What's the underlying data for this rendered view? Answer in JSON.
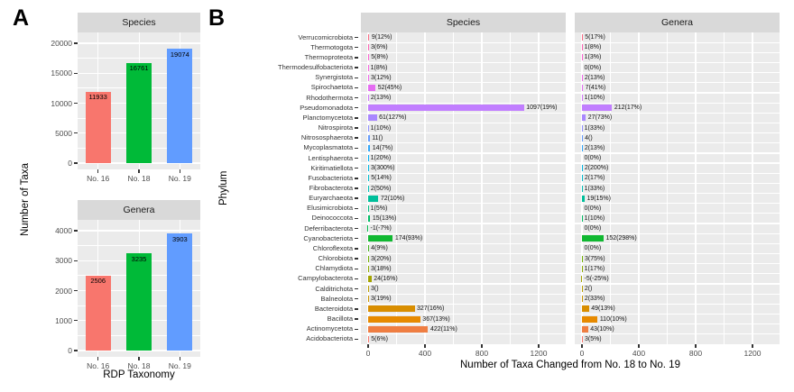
{
  "figure": {
    "panel_a_label": "A",
    "panel_b_label": "B",
    "colors": {
      "panel_bg": "#EBEBEB",
      "strip_bg": "#D9D9D9",
      "grid": "#FFFFFF",
      "tick_label": "#4D4D4D",
      "bar_value_label": "#000000"
    }
  },
  "chart_data": [
    {
      "id": "panelA_species",
      "type": "bar",
      "title": "Species",
      "categories": [
        "No. 16",
        "No. 18",
        "No. 19"
      ],
      "values": [
        11933,
        16761,
        19074
      ],
      "value_labels": [
        "11933",
        "16761",
        "19074"
      ],
      "bar_colors": [
        "#F8766D",
        "#00BA38",
        "#619CFF"
      ],
      "ylabel": "Number of Taxa",
      "xlabel": "RDP Taxonomy",
      "ylim": [
        0,
        20000
      ],
      "yticks": [
        0,
        5000,
        10000,
        15000,
        20000
      ],
      "grid": "on"
    },
    {
      "id": "panelA_genera",
      "type": "bar",
      "title": "Genera",
      "categories": [
        "No. 16",
        "No. 18",
        "No. 19"
      ],
      "values": [
        2506,
        3235,
        3903
      ],
      "value_labels": [
        "2506",
        "3235",
        "3903"
      ],
      "bar_colors": [
        "#F8766D",
        "#00BA38",
        "#619CFF"
      ],
      "ylim": [
        0,
        4000
      ],
      "yticks": [
        0,
        1000,
        2000,
        3000,
        4000
      ],
      "grid": "on"
    },
    {
      "id": "panelB_taxa_changed",
      "type": "bar-horizontal",
      "facets": [
        "Species",
        "Genera"
      ],
      "xlabel": "Number of Taxa Changed from No. 18 to No. 19",
      "ylabel": "Phylum",
      "xlim": [
        0,
        1390
      ],
      "xticks": [
        0,
        400,
        800,
        1200
      ],
      "grid": "on",
      "legend": "none",
      "rows": [
        {
          "phylum": "Verrucomicrobiota",
          "color": "#FB6A85",
          "species": 9,
          "species_label": "9(12%)",
          "genera": 5,
          "genera_label": "5(17%)"
        },
        {
          "phylum": "Thermotogota",
          "color": "#FD63B4",
          "species": 3,
          "species_label": "3(6%)",
          "genera": 1,
          "genera_label": "1(8%)"
        },
        {
          "phylum": "Thermoproteota",
          "color": "#FC62D1",
          "species": 5,
          "species_label": "5(8%)",
          "genera": 1,
          "genera_label": "1(3%)"
        },
        {
          "phylum": "Thermodesulfobacteriota",
          "color": "#F764DF",
          "species": 1,
          "species_label": "1(8%)",
          "genera": 0,
          "genera_label": "0(0%)"
        },
        {
          "phylum": "Synergistota",
          "color": "#F166E9",
          "species": 3,
          "species_label": "3(12%)",
          "genera": 2,
          "genera_label": "2(13%)"
        },
        {
          "phylum": "Spirochaetota",
          "color": "#E56DF2",
          "species": 52,
          "species_label": "52(45%)",
          "genera": 7,
          "genera_label": "7(41%)"
        },
        {
          "phylum": "Rhodothermota",
          "color": "#D376F9",
          "species": 2,
          "species_label": "2(13%)",
          "genera": 1,
          "genera_label": "1(10%)"
        },
        {
          "phylum": "Pseudomonadota",
          "color": "#C17EFF",
          "species": 1097,
          "species_label": "1097(19%)",
          "genera": 212,
          "genera_label": "212(17%)"
        },
        {
          "phylum": "Planctomycetota",
          "color": "#A987FF",
          "species": 61,
          "species_label": "61(127%)",
          "genera": 27,
          "genera_label": "27(73%)"
        },
        {
          "phylum": "Nitrospirota",
          "color": "#9090FF",
          "species": 1,
          "species_label": "1(10%)",
          "genera": 1,
          "genera_label": "1(33%)"
        },
        {
          "phylum": "Nitrososphaerota",
          "color": "#659BFD",
          "species": 11,
          "species_label": "11()",
          "genera": 4,
          "genera_label": "4()"
        },
        {
          "phylum": "Mycoplasmatota",
          "color": "#30A6F9",
          "species": 14,
          "species_label": "14(7%)",
          "genera": 2,
          "genera_label": "2(13%)"
        },
        {
          "phylum": "Lentisphaerota",
          "color": "#00B0F5",
          "species": 1,
          "species_label": "1(20%)",
          "genera": 0,
          "genera_label": "0(0%)"
        },
        {
          "phylum": "Kiritimatiellota",
          "color": "#00B6E1",
          "species": 3,
          "species_label": "3(300%)",
          "genera": 2,
          "genera_label": "2(200%)"
        },
        {
          "phylum": "Fusobacteriota",
          "color": "#00BCCE",
          "species": 5,
          "species_label": "5(14%)",
          "genera": 2,
          "genera_label": "2(17%)"
        },
        {
          "phylum": "Fibrobacterota",
          "color": "#00BFB6",
          "species": 2,
          "species_label": "2(50%)",
          "genera": 1,
          "genera_label": "1(33%)"
        },
        {
          "phylum": "Euryarchaeota",
          "color": "#00BF9B",
          "species": 72,
          "species_label": "72(10%)",
          "genera": 19,
          "genera_label": "19(15%)"
        },
        {
          "phylum": "Elusimicrobiota",
          "color": "#00BF7F",
          "species": 1,
          "species_label": "1(5%)",
          "genera": 0,
          "genera_label": "0(0%)"
        },
        {
          "phylum": "Deinococcota",
          "color": "#00BD65",
          "species": 15,
          "species_label": "15(13%)",
          "genera": 1,
          "genera_label": "1(10%)"
        },
        {
          "phylum": "Deferribacterota",
          "color": "#00BB4A",
          "species": -1,
          "species_label": "-1(-7%)",
          "genera": 0,
          "genera_label": "0(0%)"
        },
        {
          "phylum": "Cyanobacteriota",
          "color": "#10B831",
          "species": 174,
          "species_label": "174(93%)",
          "genera": 152,
          "genera_label": "152(298%)"
        },
        {
          "phylum": "Chloroflexota",
          "color": "#40B41B",
          "species": 4,
          "species_label": "4(9%)",
          "genera": 0,
          "genera_label": "0(0%)"
        },
        {
          "phylum": "Chlorobiota",
          "color": "#72B000",
          "species": 3,
          "species_label": "3(20%)",
          "genera": 3,
          "genera_label": "3(75%)"
        },
        {
          "phylum": "Chlamydiota",
          "color": "#8DAA00",
          "species": 3,
          "species_label": "3(18%)",
          "genera": 1,
          "genera_label": "1(17%)"
        },
        {
          "phylum": "Campylobacterota",
          "color": "#A4A400",
          "species": 24,
          "species_label": "24(16%)",
          "genera": -5,
          "genera_label": "-5(-25%)"
        },
        {
          "phylum": "Calditrichota",
          "color": "#B99E00",
          "species": 3,
          "species_label": "3()",
          "genera": 2,
          "genera_label": "2()"
        },
        {
          "phylum": "Balneolota",
          "color": "#C99600",
          "species": 3,
          "species_label": "3(19%)",
          "genera": 2,
          "genera_label": "2(33%)"
        },
        {
          "phylum": "Bacteroidota",
          "color": "#D98E00",
          "species": 327,
          "species_label": "327(16%)",
          "genera": 49,
          "genera_label": "49(13%)"
        },
        {
          "phylum": "Bacillota",
          "color": "#E78A00",
          "species": 367,
          "species_label": "367(13%)",
          "genera": 110,
          "genera_label": "110(10%)"
        },
        {
          "phylum": "Actinomycetota",
          "color": "#EF7E42",
          "species": 422,
          "species_label": "422(11%)",
          "genera": 43,
          "genera_label": "43(10%)"
        },
        {
          "phylum": "Acidobacteriota",
          "color": "#F8766D",
          "species": 5,
          "species_label": "5(6%)",
          "genera": 3,
          "genera_label": "3(5%)"
        }
      ]
    }
  ]
}
